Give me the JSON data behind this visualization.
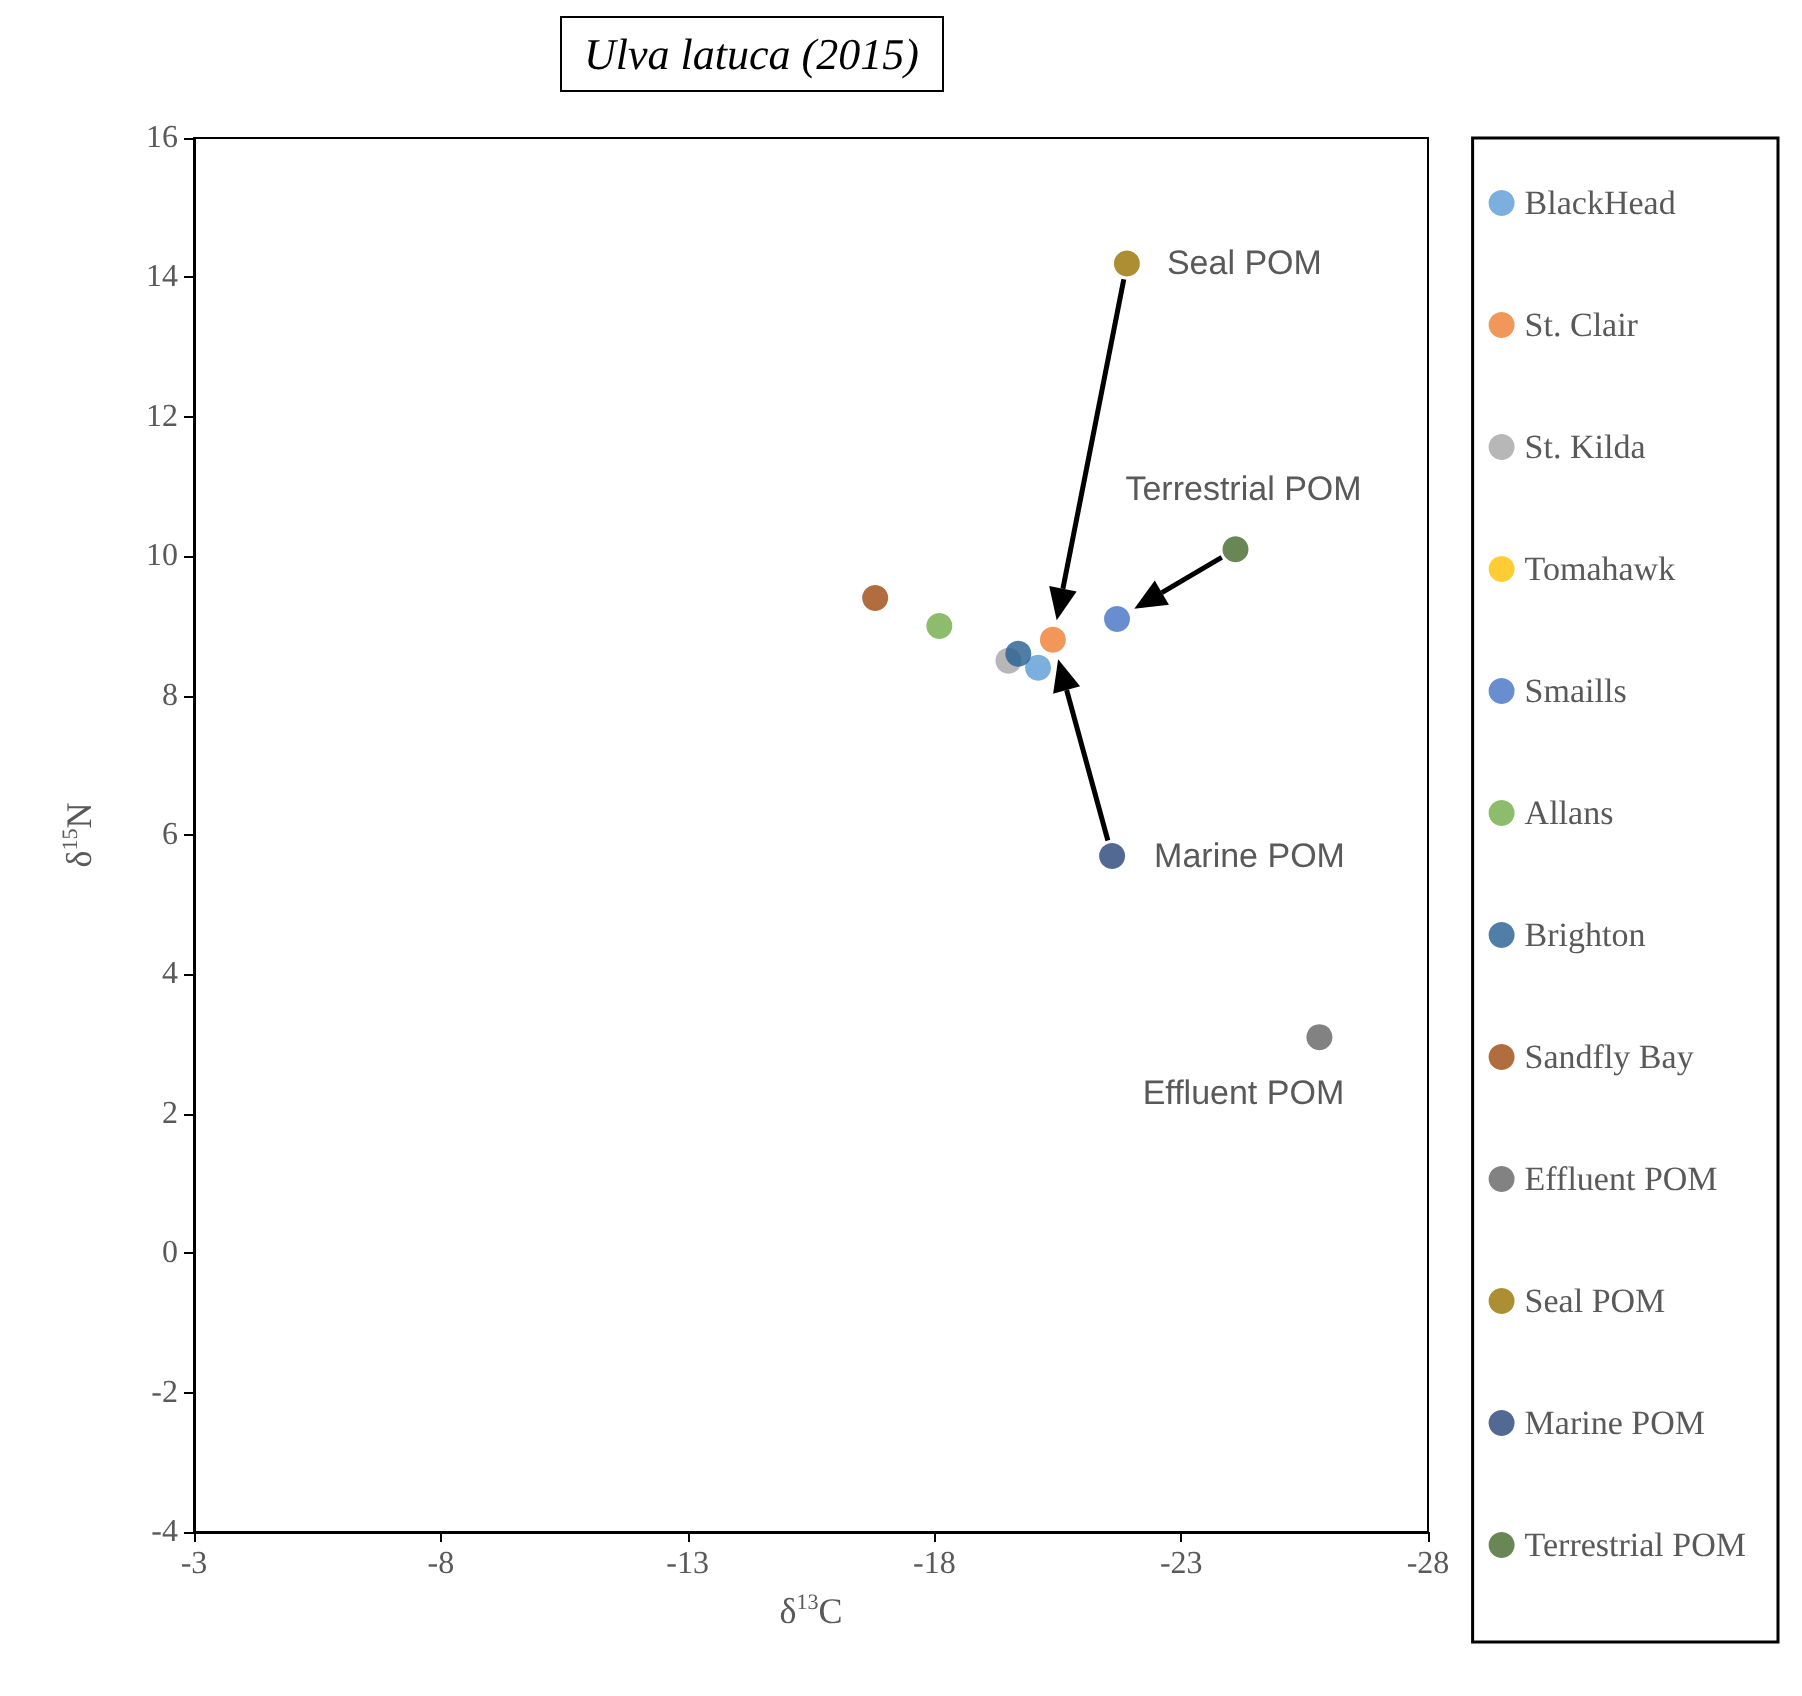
{
  "chart_data": {
    "type": "scatter",
    "title": "Ulva latuca (2015)",
    "xlabel": "δ$^{13}$C",
    "ylabel": "δ$^{15}$N",
    "xlim": [
      -3,
      -28
    ],
    "xticks": [
      -3,
      -8,
      -13,
      -18,
      -23,
      -28
    ],
    "ylim": [
      -4,
      16
    ],
    "yticks": [
      -4,
      -2,
      0,
      2,
      4,
      6,
      8,
      10,
      12,
      14,
      16
    ],
    "grid": false,
    "legend": "right",
    "marker": "circle",
    "series": [
      {
        "name": "BlackHead",
        "color": "#5b9bd5",
        "x": [
          -20.1
        ],
        "values": [
          8.4
        ]
      },
      {
        "name": "St. Clair",
        "color": "#ed7d31",
        "x": [
          -20.4
        ],
        "values": [
          8.8
        ]
      },
      {
        "name": "St. Kilda",
        "color": "#a5a5a5",
        "x": [
          -19.5
        ],
        "values": [
          8.5
        ]
      },
      {
        "name": "Tomahawk",
        "color": "#ffc000",
        "x": [
          null
        ],
        "values": [
          null
        ]
      },
      {
        "name": "Smaills",
        "color": "#4472c4",
        "x": [
          -21.7
        ],
        "values": [
          9.1
        ]
      },
      {
        "name": "Allans",
        "color": "#70ad47",
        "x": [
          -18.1
        ],
        "values": [
          9.0
        ]
      },
      {
        "name": "Brighton",
        "color": "#255e91",
        "x": [
          -19.7
        ],
        "values": [
          8.6
        ]
      },
      {
        "name": "Sandfly Bay",
        "color": "#9e480e",
        "x": [
          -16.8
        ],
        "values": [
          9.4
        ]
      },
      {
        "name": "Effluent POM",
        "color": "#636363",
        "x": [
          -25.8
        ],
        "values": [
          3.1
        ]
      },
      {
        "name": "Seal POM",
        "color": "#997300",
        "x": [
          -21.9
        ],
        "values": [
          14.2
        ]
      },
      {
        "name": "Marine POM",
        "color": "#264478",
        "x": [
          -21.6
        ],
        "values": [
          5.7
        ]
      },
      {
        "name": "Terrestrial POM",
        "color": "#43682b",
        "x": [
          -24.1
        ],
        "values": [
          10.1
        ]
      }
    ],
    "annotations": [
      {
        "text": "Seal POM",
        "x": -21.9,
        "y": 14.2
      },
      {
        "text": "Terrestrial POM",
        "x": -24.1,
        "y": 10.1
      },
      {
        "text": "Marine POM",
        "x": -21.6,
        "y": 5.7
      },
      {
        "text": "Effluent POM",
        "x": -25.8,
        "y": 3.1
      }
    ]
  }
}
